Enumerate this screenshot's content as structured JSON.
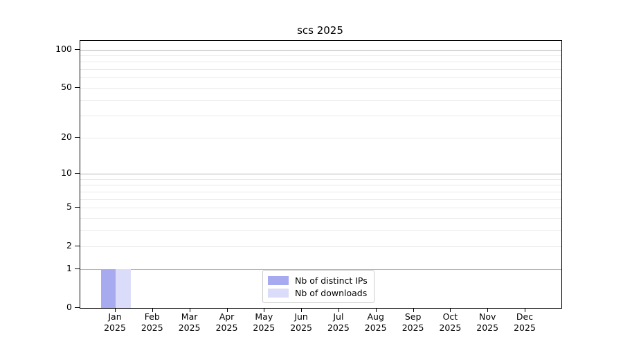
{
  "chart_data": {
    "type": "bar",
    "title": "scs 2025",
    "xlabel": "",
    "ylabel": "",
    "y_scale": "log1p",
    "ylim": [
      0,
      100
    ],
    "grid": true,
    "legend_position": "lower center",
    "x_tick_labels": [
      [
        "Jan",
        "2025"
      ],
      [
        "Feb",
        "2025"
      ],
      [
        "Mar",
        "2025"
      ],
      [
        "Apr",
        "2025"
      ],
      [
        "May",
        "2025"
      ],
      [
        "Jun",
        "2025"
      ],
      [
        "Jul",
        "2025"
      ],
      [
        "Aug",
        "2025"
      ],
      [
        "Sep",
        "2025"
      ],
      [
        "Oct",
        "2025"
      ],
      [
        "Nov",
        "2025"
      ],
      [
        "Dec",
        "2025"
      ]
    ],
    "categories": [
      "Jan 2025",
      "Feb 2025",
      "Mar 2025",
      "Apr 2025",
      "May 2025",
      "Jun 2025",
      "Jul 2025",
      "Aug 2025",
      "Sep 2025",
      "Oct 2025",
      "Nov 2025",
      "Dec 2025"
    ],
    "y_major_ticks": [
      0,
      1,
      2,
      5,
      10,
      20,
      50,
      100
    ],
    "y_major_gridlines": [
      1,
      10,
      100
    ],
    "y_minor_gridlines": [
      2,
      3,
      4,
      5,
      6,
      7,
      8,
      9,
      20,
      30,
      40,
      50,
      60,
      70,
      80,
      90
    ],
    "series": [
      {
        "name": "Nb of distinct IPs",
        "color": "#a8aaf0",
        "values": [
          1,
          0,
          0,
          0,
          0,
          0,
          0,
          0,
          0,
          0,
          0,
          0
        ]
      },
      {
        "name": "Nb of downloads",
        "color": "#dbdcf9",
        "values": [
          1,
          0,
          0,
          0,
          0,
          0,
          0,
          0,
          0,
          0,
          0,
          0
        ]
      }
    ]
  },
  "colors": {
    "major_grid": "#b3b3b3",
    "minor_grid": "#e9e9e9",
    "spine": "#000000",
    "background": "#ffffff"
  }
}
